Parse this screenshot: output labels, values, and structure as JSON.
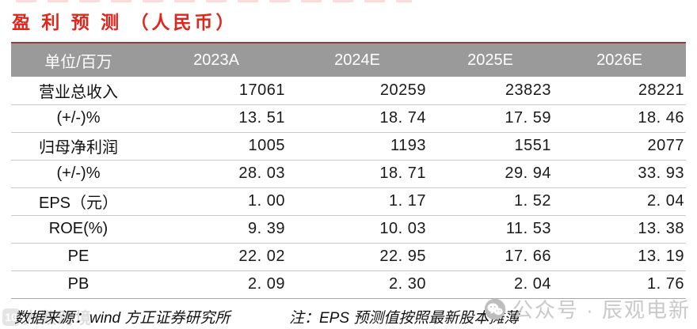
{
  "title": "盈 利 预 测 （人民币）",
  "table": {
    "columns": [
      "单位/百万",
      "2023A",
      "2024E",
      "2025E",
      "2026E"
    ],
    "rows": [
      {
        "label": "营业总收入",
        "values": [
          "17061",
          "20259",
          "23823",
          "28221"
        ]
      },
      {
        "label": "(+/-)%",
        "values": [
          "13. 51",
          "18. 74",
          "17. 59",
          "18. 46"
        ]
      },
      {
        "label": "归母净利润",
        "values": [
          "1005",
          "1193",
          "1551",
          "2077"
        ]
      },
      {
        "label": "(+/-)%",
        "values": [
          "28. 03",
          "18. 71",
          "29. 94",
          "33. 93"
        ]
      },
      {
        "label": "EPS（元）",
        "values": [
          "1. 00",
          "1. 17",
          "1. 52",
          "2. 04"
        ]
      },
      {
        "label": "ROE(%)",
        "values": [
          "9. 39",
          "10. 03",
          "11. 53",
          "13. 38"
        ]
      },
      {
        "label": "PE",
        "values": [
          "22. 02",
          "22. 95",
          "17. 66",
          "13. 19"
        ]
      },
      {
        "label": "PB",
        "values": [
          "2. 09",
          "2. 30",
          "2. 04",
          "1. 76"
        ]
      }
    ]
  },
  "footer": {
    "source": "数据来源：wind 方正证券研究所",
    "note": "注：EPS 预测值按照最新股本摊薄"
  },
  "watermarks": {
    "right_text": "公众号 · 辰观电新",
    "left_logo": "10",
    "left_text": "大数跨境"
  },
  "colors": {
    "title_red": "#e1251b",
    "rule_dark_red": "#9c3a36",
    "header_bg": "#9a9a9a",
    "header_text": "#ffffff",
    "row_divider": "#cacaca",
    "watermark_gray": "#c9c9c9"
  }
}
